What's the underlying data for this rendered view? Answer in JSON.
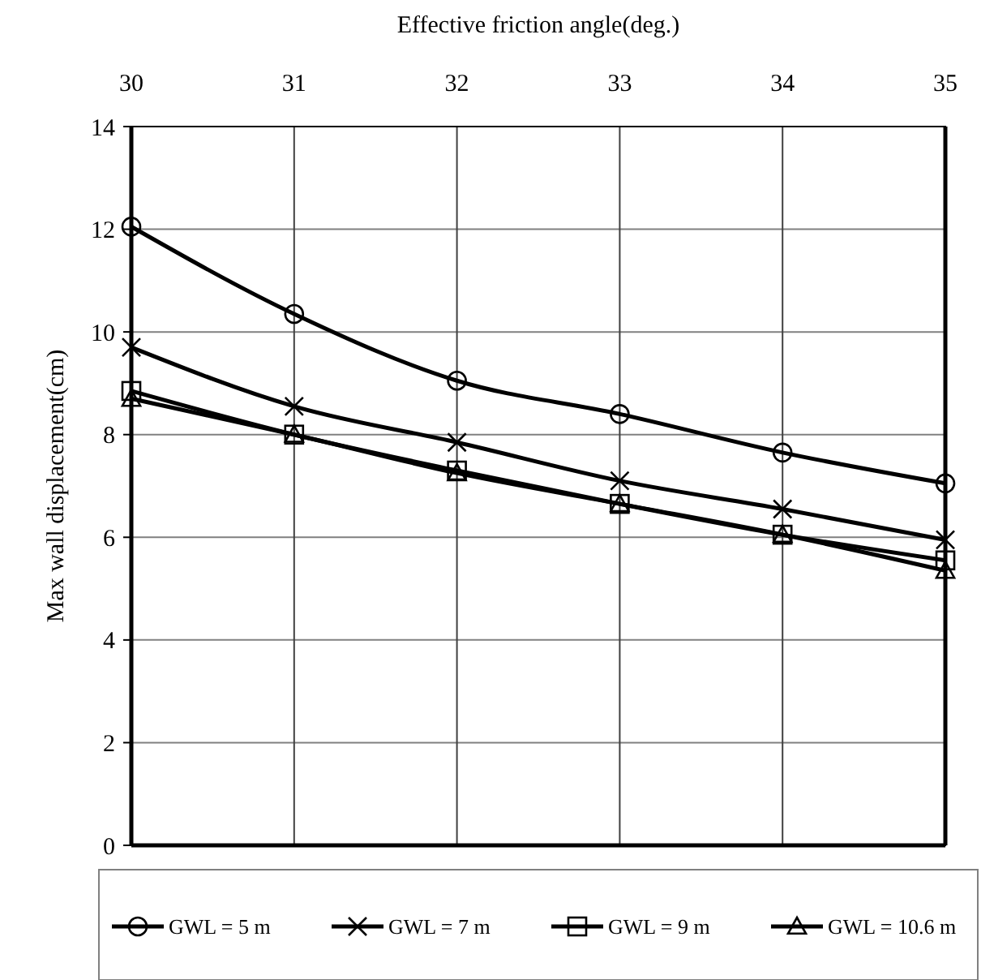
{
  "chart_data": {
    "type": "line",
    "xlabel": "Effective friction angle(deg.)",
    "ylabel": "Max wall displacement(cm)",
    "x": [
      30,
      31,
      32,
      33,
      34,
      35
    ],
    "xlim": [
      30,
      35
    ],
    "xticks": [
      30,
      31,
      32,
      33,
      34,
      35
    ],
    "ylim": [
      0,
      14
    ],
    "yticks": [
      0,
      2,
      4,
      6,
      8,
      10,
      12,
      14
    ],
    "grid": true,
    "legend": "bottom",
    "series": [
      {
        "name": "GWL = 5 m",
        "color": "#000000",
        "marker": "circle",
        "values": [
          12.05,
          10.35,
          9.05,
          8.4,
          7.65,
          7.05
        ]
      },
      {
        "name": "GWL = 7 m",
        "color": "#000000",
        "marker": "cross",
        "values": [
          9.7,
          8.55,
          7.85,
          7.1,
          6.55,
          5.95
        ]
      },
      {
        "name": "GWL = 9 m",
        "color": "#000000",
        "marker": "square",
        "values": [
          8.85,
          8.0,
          7.3,
          6.65,
          6.05,
          5.55
        ]
      },
      {
        "name": "GWL = 10.6 m",
        "color": "#000000",
        "marker": "triangle",
        "values": [
          8.7,
          8.0,
          7.25,
          6.65,
          6.05,
          5.35
        ]
      }
    ]
  }
}
